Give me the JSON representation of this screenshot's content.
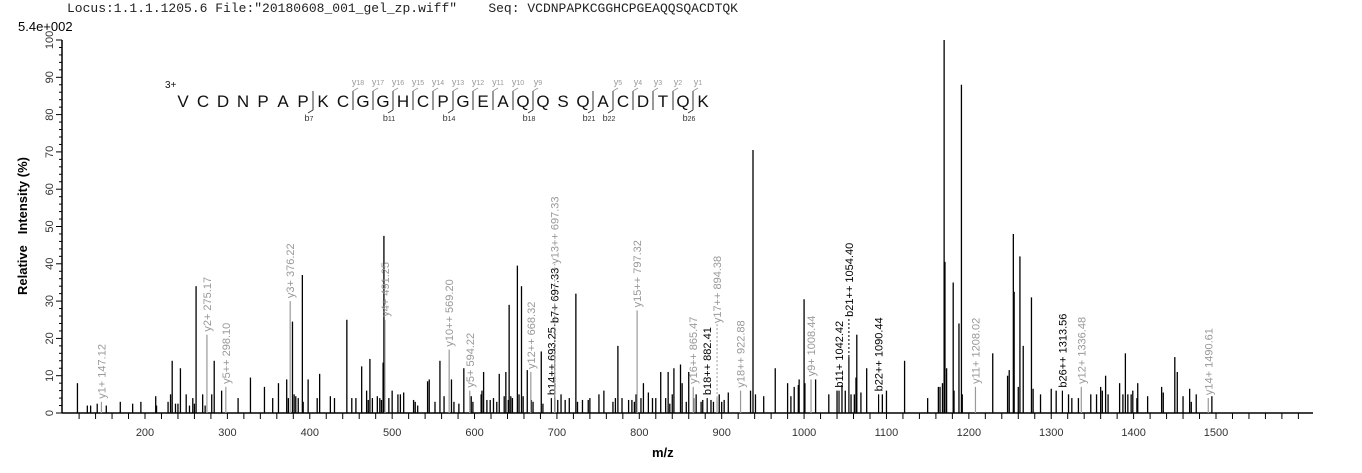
{
  "header": {
    "locus": "Locus:1.1.1.1205.6",
    "file": "File:\"20180608_001_gel_zp.wiff\"",
    "seq_label": "Seq:",
    "sequence": "VCDNPAPKCGGHCPGEAQQSQACDTQK"
  },
  "scale_label": "5.4e+002",
  "fragment_map": {
    "charge": "3+",
    "residues": [
      "V",
      "C",
      "D",
      "N",
      "P",
      "A",
      "P",
      "K",
      "C",
      "G",
      "G",
      "H",
      "C",
      "P",
      "G",
      "E",
      "A",
      "Q",
      "Q",
      "S",
      "Q",
      "A",
      "C",
      "D",
      "T",
      "Q",
      "K"
    ],
    "y_ions": [
      18,
      17,
      16,
      15,
      14,
      13,
      12,
      11,
      10,
      9,
      5,
      4,
      3,
      2,
      1
    ],
    "b_ions": [
      7,
      11,
      14,
      18,
      21,
      22,
      26
    ],
    "y_color": "#999999",
    "b_color": "#000000"
  },
  "chart_data": {
    "type": "bar",
    "subtype": "mass-spectrum-stick",
    "xlabel": "m/z",
    "ylabel": "Relative   Intensity (%)",
    "xlim": [
      100,
      1618
    ],
    "ylim": [
      0,
      100
    ],
    "x_ticks": [
      200,
      300,
      400,
      500,
      600,
      700,
      800,
      900,
      1000,
      1100,
      1200,
      1300,
      1400,
      1500
    ],
    "y_ticks": [
      0,
      10,
      20,
      30,
      40,
      50,
      60,
      70,
      80,
      90,
      100
    ],
    "grid": false,
    "legend": "none",
    "peak_color": "#000000",
    "peaks": [
      [
        118,
        8
      ],
      [
        130,
        2
      ],
      [
        134,
        2
      ],
      [
        142,
        2.5
      ],
      [
        153,
        2
      ],
      [
        170,
        3
      ],
      [
        185,
        2.5
      ],
      [
        195,
        3
      ],
      [
        213,
        4.5
      ],
      [
        214,
        2
      ],
      [
        228,
        3
      ],
      [
        231,
        5
      ],
      [
        233,
        14
      ],
      [
        237,
        2.5
      ],
      [
        240,
        2.5
      ],
      [
        243,
        12
      ],
      [
        250,
        5
      ],
      [
        254,
        2
      ],
      [
        258,
        4
      ],
      [
        260,
        2.5
      ],
      [
        262,
        34
      ],
      [
        270,
        5
      ],
      [
        273,
        2
      ],
      [
        281,
        5
      ],
      [
        284,
        14
      ],
      [
        293,
        6
      ],
      [
        313,
        4
      ],
      [
        328,
        9.5
      ],
      [
        345,
        7
      ],
      [
        355,
        4
      ],
      [
        362,
        8
      ],
      [
        372,
        9
      ],
      [
        374,
        4
      ],
      [
        379,
        24.5
      ],
      [
        381,
        5
      ],
      [
        383,
        4.5
      ],
      [
        386,
        4
      ],
      [
        391,
        37
      ],
      [
        392,
        3
      ],
      [
        398,
        9
      ],
      [
        409,
        4
      ],
      [
        412,
        10.5
      ],
      [
        425,
        4.5
      ],
      [
        430,
        4
      ],
      [
        445,
        25
      ],
      [
        451,
        4
      ],
      [
        456,
        4
      ],
      [
        463,
        12.5
      ],
      [
        469,
        6
      ],
      [
        471,
        3.5
      ],
      [
        473,
        14.5
      ],
      [
        476,
        4
      ],
      [
        482,
        4.5
      ],
      [
        485,
        4
      ],
      [
        487,
        3.5
      ],
      [
        489,
        13.5
      ],
      [
        490,
        47.5
      ],
      [
        496,
        4
      ],
      [
        500,
        6
      ],
      [
        507,
        5
      ],
      [
        510,
        5
      ],
      [
        514,
        5.5
      ],
      [
        526,
        3.5
      ],
      [
        528,
        3
      ],
      [
        531,
        2
      ],
      [
        543,
        8.5
      ],
      [
        545,
        9
      ],
      [
        552,
        3
      ],
      [
        558,
        14
      ],
      [
        563,
        4.5
      ],
      [
        572,
        9
      ],
      [
        575,
        3
      ],
      [
        581,
        2.5
      ],
      [
        587,
        12
      ],
      [
        596,
        4.5
      ],
      [
        598,
        3
      ],
      [
        608,
        5
      ],
      [
        609,
        6
      ],
      [
        611,
        11
      ],
      [
        615,
        3.5
      ],
      [
        619,
        3.5
      ],
      [
        623,
        4
      ],
      [
        627,
        3
      ],
      [
        630,
        10.5
      ],
      [
        636,
        4.5
      ],
      [
        638,
        11
      ],
      [
        641,
        3.5
      ],
      [
        642,
        29
      ],
      [
        644,
        4.5
      ],
      [
        646,
        4
      ],
      [
        652,
        39.5
      ],
      [
        654,
        5
      ],
      [
        657,
        34
      ],
      [
        659,
        4.5
      ],
      [
        664,
        11.5
      ],
      [
        669,
        3.5
      ],
      [
        671,
        3
      ],
      [
        681,
        16.5
      ],
      [
        683,
        2.5
      ],
      [
        701,
        3.5
      ],
      [
        705,
        5
      ],
      [
        710,
        3.5
      ],
      [
        715,
        4
      ],
      [
        723,
        32
      ],
      [
        725,
        3
      ],
      [
        731,
        3.5
      ],
      [
        738,
        3.5
      ],
      [
        740,
        4
      ],
      [
        751,
        5
      ],
      [
        757,
        6
      ],
      [
        768,
        3
      ],
      [
        771,
        4
      ],
      [
        774,
        18
      ],
      [
        779,
        4
      ],
      [
        787,
        3.5
      ],
      [
        791,
        3.5
      ],
      [
        794,
        3
      ],
      [
        796,
        5
      ],
      [
        802,
        4
      ],
      [
        805,
        8
      ],
      [
        811,
        5.5
      ],
      [
        816,
        4
      ],
      [
        820,
        4
      ],
      [
        826,
        11
      ],
      [
        832,
        4
      ],
      [
        835,
        11
      ],
      [
        837,
        2.5
      ],
      [
        840,
        5
      ],
      [
        842,
        12
      ],
      [
        850,
        13
      ],
      [
        852,
        8
      ],
      [
        857,
        3
      ],
      [
        860,
        11
      ],
      [
        866,
        4
      ],
      [
        869,
        5
      ],
      [
        875,
        3
      ],
      [
        877,
        3.5
      ],
      [
        887,
        3.5
      ],
      [
        890,
        3
      ],
      [
        897,
        5
      ],
      [
        900,
        3
      ],
      [
        903,
        3.5
      ],
      [
        908,
        5.5
      ],
      [
        935,
        6
      ],
      [
        938,
        70.5
      ],
      [
        941,
        5
      ],
      [
        951,
        4.5
      ],
      [
        965,
        12
      ],
      [
        980,
        8
      ],
      [
        984,
        4.5
      ],
      [
        988,
        7
      ],
      [
        993,
        7.5
      ],
      [
        994,
        9
      ],
      [
        1000,
        30.5
      ],
      [
        1001,
        8
      ],
      [
        1014,
        9
      ],
      [
        1030,
        5
      ],
      [
        1040,
        6
      ],
      [
        1046,
        7.5
      ],
      [
        1050,
        6
      ],
      [
        1057,
        5
      ],
      [
        1061,
        5
      ],
      [
        1063,
        9.5
      ],
      [
        1064,
        21
      ],
      [
        1069,
        5.5
      ],
      [
        1076,
        12
      ],
      [
        1095,
        5
      ],
      [
        1100,
        6
      ],
      [
        1122,
        14
      ],
      [
        1150,
        4
      ],
      [
        1163,
        7
      ],
      [
        1165,
        7
      ],
      [
        1168,
        8
      ],
      [
        1170,
        100
      ],
      [
        1171,
        40.5
      ],
      [
        1173,
        12
      ],
      [
        1181,
        35
      ],
      [
        1182,
        6
      ],
      [
        1188,
        24
      ],
      [
        1191,
        88
      ],
      [
        1192,
        5
      ],
      [
        1229,
        16
      ],
      [
        1247,
        10
      ],
      [
        1249,
        11.5
      ],
      [
        1254,
        48
      ],
      [
        1255,
        32.5
      ],
      [
        1260,
        7
      ],
      [
        1262,
        42
      ],
      [
        1266,
        18
      ],
      [
        1276,
        31
      ],
      [
        1278,
        6.5
      ],
      [
        1287,
        5
      ],
      [
        1300,
        6.5
      ],
      [
        1306,
        6
      ],
      [
        1321,
        5
      ],
      [
        1325,
        4
      ],
      [
        1333,
        4
      ],
      [
        1348,
        5
      ],
      [
        1355,
        5
      ],
      [
        1360,
        7
      ],
      [
        1362,
        6
      ],
      [
        1366,
        10
      ],
      [
        1369,
        5
      ],
      [
        1383,
        8
      ],
      [
        1387,
        5
      ],
      [
        1390,
        16
      ],
      [
        1393,
        5
      ],
      [
        1397,
        5
      ],
      [
        1399,
        6
      ],
      [
        1404,
        4
      ],
      [
        1405,
        8
      ],
      [
        1417,
        4.5
      ],
      [
        1434,
        7
      ],
      [
        1436,
        5.5
      ],
      [
        1450,
        15
      ],
      [
        1453,
        11
      ],
      [
        1460,
        4.5
      ],
      [
        1468,
        6.5
      ],
      [
        1470,
        3
      ],
      [
        1476,
        5
      ],
      [
        1495,
        4.5
      ]
    ],
    "annotations": [
      {
        "label": "y1+ 147.12",
        "mz": 147.12,
        "intensity": 3,
        "type": "y"
      },
      {
        "label": "y2+ 275.17",
        "mz": 275.17,
        "intensity": 21,
        "type": "y"
      },
      {
        "label": "y5++ 298.10",
        "mz": 298.1,
        "intensity": 7,
        "type": "y"
      },
      {
        "label": "y3+ 376.22",
        "mz": 376.22,
        "intensity": 30,
        "type": "y"
      },
      {
        "label": "y4+ 491.25",
        "mz": 491.25,
        "intensity": 25,
        "type": "y"
      },
      {
        "label": "y10++ 569.20",
        "mz": 569.2,
        "intensity": 17,
        "type": "y"
      },
      {
        "label": "y5+ 594.22",
        "mz": 594.22,
        "intensity": 6,
        "type": "y"
      },
      {
        "label": "y12++ 668.32",
        "mz": 668.32,
        "intensity": 11,
        "type": "y"
      },
      {
        "label": "b14++ 693.25",
        "mz": 693.25,
        "intensity": 4,
        "type": "b"
      },
      {
        "label": "b7+ 697.33",
        "mz": 697.33,
        "intensity": 4,
        "type": "b"
      },
      {
        "label": "y13++ 697.33",
        "mz": 697.33,
        "intensity": 16,
        "type": "y"
      },
      {
        "label": "y15++ 797.32",
        "mz": 797.32,
        "intensity": 27.5,
        "type": "y"
      },
      {
        "label": "y16++ 865.47",
        "mz": 865.47,
        "intensity": 7,
        "type": "y"
      },
      {
        "label": "b18++ 882.41",
        "mz": 882.41,
        "intensity": 4,
        "type": "b"
      },
      {
        "label": "y17++ 894.38",
        "mz": 894.38,
        "intensity": 4,
        "type": "y"
      },
      {
        "label": "y18++ 922.88",
        "mz": 922.88,
        "intensity": 6,
        "type": "y"
      },
      {
        "label": "y9+ 1008.44",
        "mz": 1008.44,
        "intensity": 9,
        "type": "y"
      },
      {
        "label": "b11+ 1042.42",
        "mz": 1042.42,
        "intensity": 6,
        "type": "b"
      },
      {
        "label": "b21++ 1054.40",
        "mz": 1054.4,
        "intensity": 15,
        "type": "b"
      },
      {
        "label": "b22++ 1090.44",
        "mz": 1090.44,
        "intensity": 5,
        "type": "b"
      },
      {
        "label": "y11+ 1208.02",
        "mz": 1208.02,
        "intensity": 7,
        "type": "y"
      },
      {
        "label": "b26++ 1313.56",
        "mz": 1313.56,
        "intensity": 6,
        "type": "b"
      },
      {
        "label": "y12+ 1336.48",
        "mz": 1336.48,
        "intensity": 7,
        "type": "y"
      },
      {
        "label": "y14+ 1490.61",
        "mz": 1490.61,
        "intensity": 4,
        "type": "y"
      }
    ]
  }
}
